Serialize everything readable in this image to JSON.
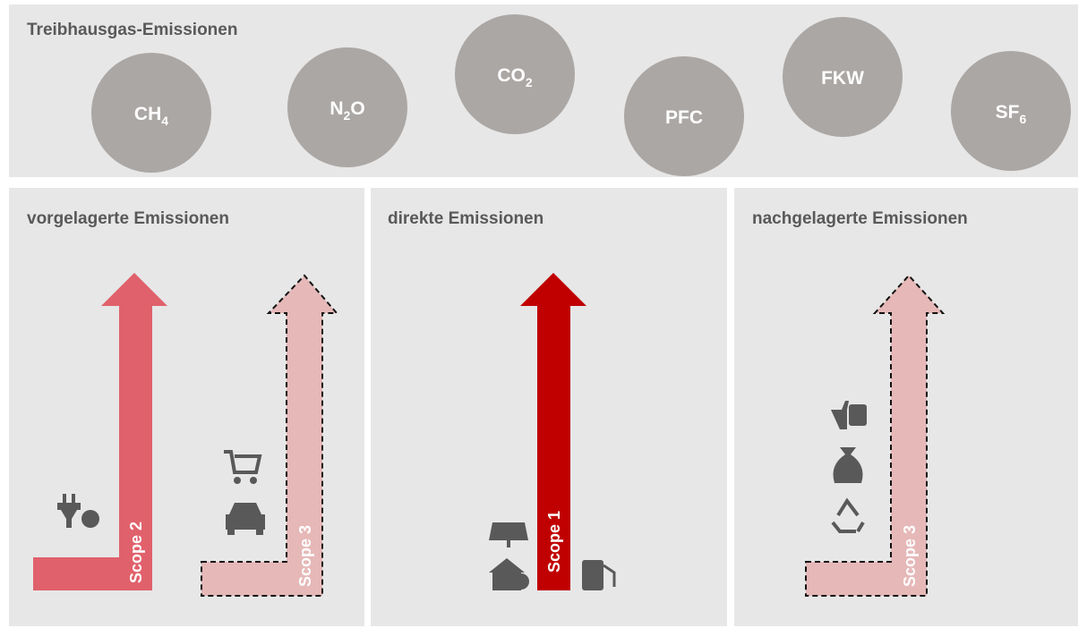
{
  "title": "Treibhausgas-Emissionen",
  "gases": [
    {
      "base": "CH",
      "sub": "4"
    },
    {
      "base": "N",
      "sub": "2",
      "rest": "O"
    },
    {
      "base": "CO",
      "sub": "2"
    },
    {
      "base": "PFC"
    },
    {
      "base": "FKW"
    },
    {
      "base": "SF",
      "sub": "6"
    }
  ],
  "panels": [
    {
      "title": "vorgelagerte Emissionen",
      "arrows": [
        "Scope 2",
        "Scope 3"
      ]
    },
    {
      "title": "direkte Emissionen",
      "arrows": [
        "Scope 1"
      ]
    },
    {
      "title": "nachgelagerte Emissionen",
      "arrows": [
        "Scope 3"
      ]
    }
  ]
}
